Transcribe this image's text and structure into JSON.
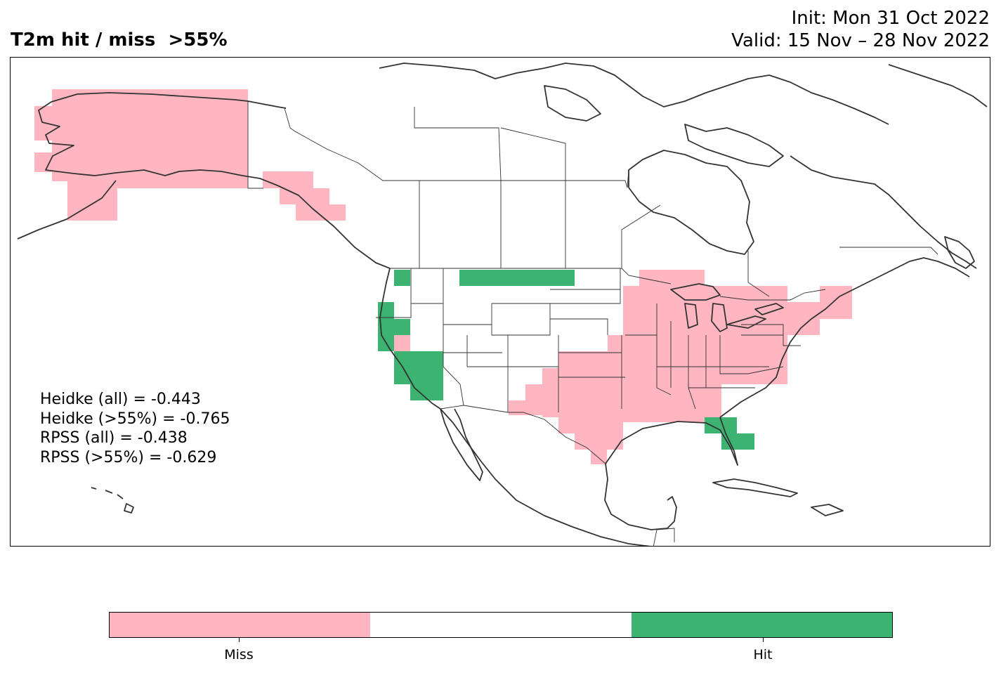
{
  "title": {
    "left": "T2m hit / miss  >55%",
    "init": "Init: Mon 31 Oct 2022",
    "valid": "Valid: 15 Nov – 28 Nov 2022"
  },
  "scores": [
    "Heidke (all) = -0.443",
    "Heidke (>55%) = -0.765",
    "RPSS (all) = -0.438",
    "RPSS (>55%) = -0.629"
  ],
  "legend": {
    "miss_label": "Miss",
    "hit_label": "Hit",
    "colors": {
      "miss": "#ffb6c1",
      "neutral": "#ffffff",
      "hit": "#3cb371"
    }
  },
  "map": {
    "projection": "plate-carree",
    "region": "North America",
    "coastline_color": "#333333",
    "border_color": "#333333"
  }
}
